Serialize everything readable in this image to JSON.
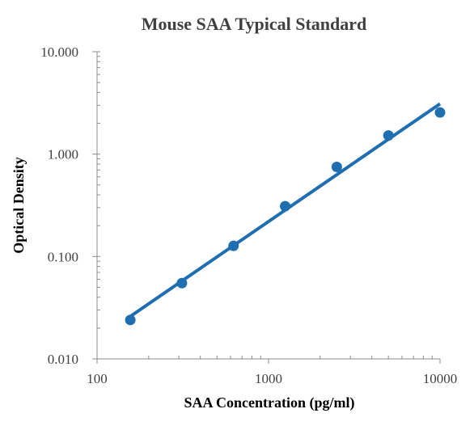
{
  "chart_data": {
    "type": "scatter",
    "title": "Mouse SAA Typical Standard",
    "xlabel": "SAA Concentration (pg/ml)",
    "ylabel": "Optical Density",
    "x_scale": "log",
    "y_scale": "log",
    "xlim": [
      100,
      10000
    ],
    "ylim": [
      0.01,
      10
    ],
    "x_ticks": [
      "100",
      "1000",
      "10000"
    ],
    "y_ticks": [
      "0.010",
      "0.100",
      "1.000",
      "10.000"
    ],
    "grid": false,
    "legend": "none",
    "series": [
      {
        "points": {
          "x": [
            156.25,
            312.5,
            625,
            1250,
            2500,
            5000,
            10000
          ],
          "y": [
            0.024,
            0.055,
            0.127,
            0.31,
            0.75,
            1.52,
            2.55
          ]
        },
        "trendline": {
          "x": [
            156.25,
            10000
          ],
          "y": [
            0.026,
            3.1
          ]
        },
        "color": "#1f6eb0"
      }
    ]
  }
}
